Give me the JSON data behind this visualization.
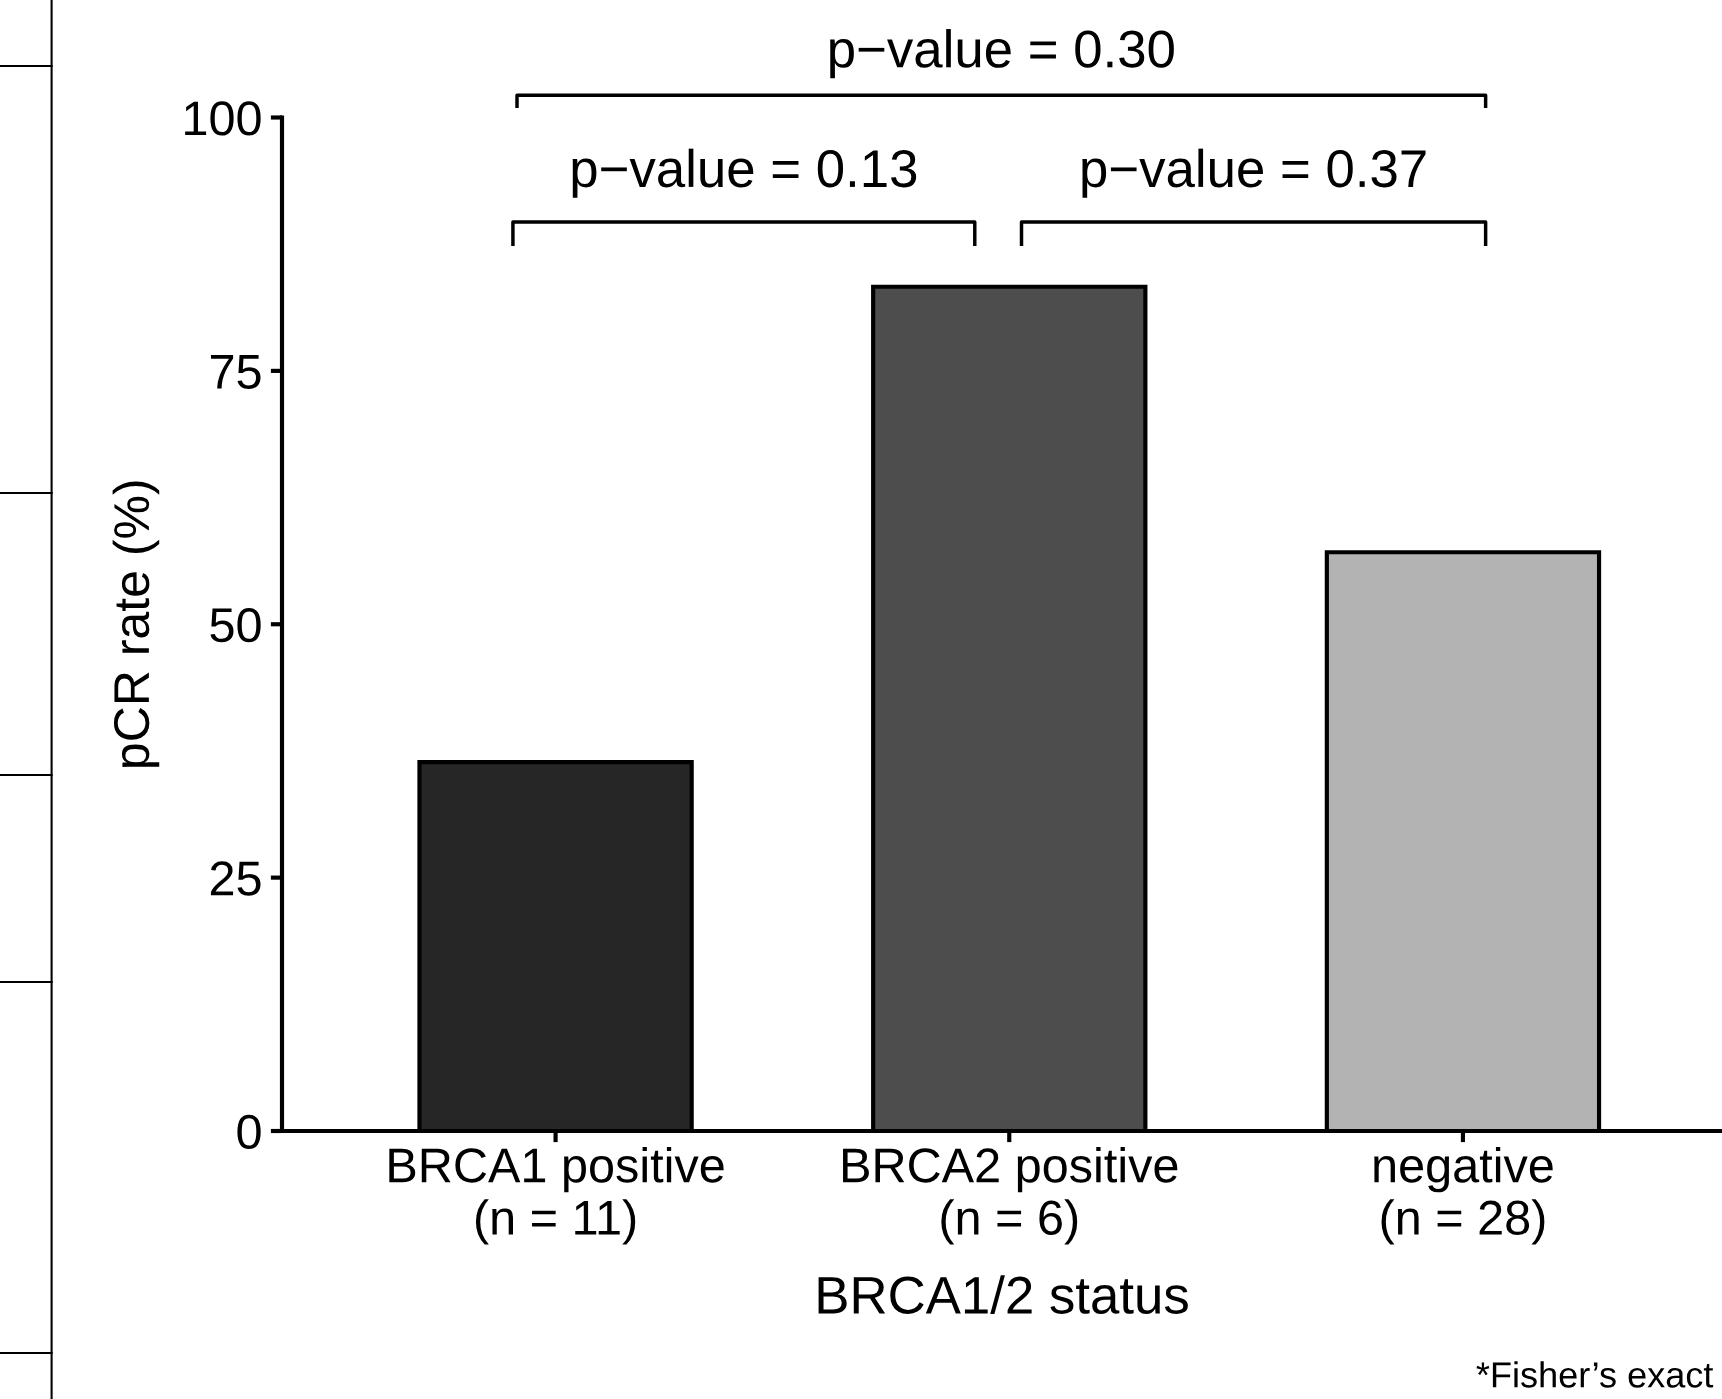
{
  "chart_data": {
    "type": "bar",
    "categories": [
      "BRCA1 positive\n(n = 11)",
      "BRCA2 positive\n(n = 6)",
      "negative\n(n = 28)"
    ],
    "values": [
      36.4,
      83.3,
      57.1
    ],
    "colors": [
      "#262626",
      "#4d4d4d",
      "#b3b3b3"
    ],
    "xlabel": "BRCA1/2 status",
    "ylabel": "pCR rate (%)",
    "ylim": [
      0,
      100
    ],
    "yticks": [
      0,
      25,
      50,
      75,
      100
    ],
    "grid": false,
    "annotations": [
      "p−value = 0.30",
      "p−value = 0.13",
      "p−value = 0.37",
      "*Fisher’s exact"
    ]
  }
}
